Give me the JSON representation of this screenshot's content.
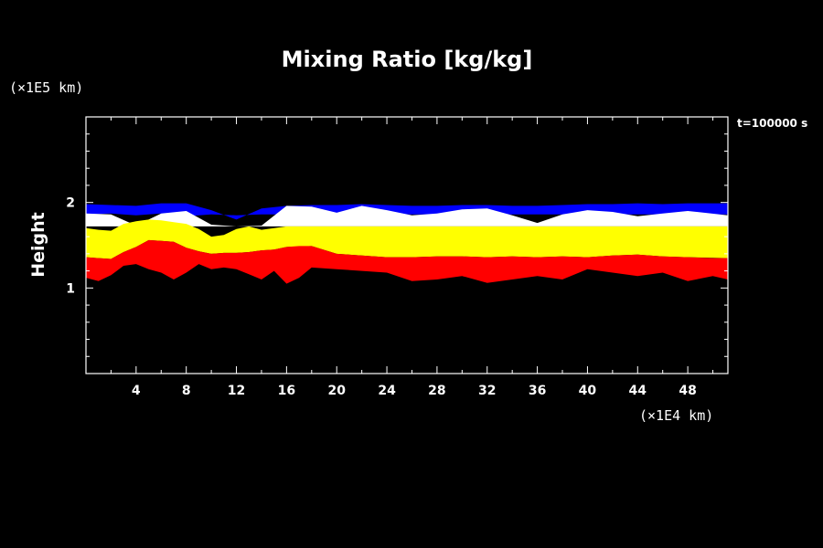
{
  "chart_data": {
    "type": "heatmap",
    "title": "Mixing Ratio [kg/kg]",
    "ylabel": "Height",
    "y_unit": "(×1E5 km)",
    "x_unit": "(×1E4 km)",
    "time_label": "t=100000 s",
    "xlim": [
      0,
      51.2
    ],
    "ylim": [
      0,
      3.0
    ],
    "x_ticks": [
      4,
      8,
      12,
      16,
      20,
      24,
      28,
      32,
      36,
      40,
      44,
      48
    ],
    "y_ticks": [
      1,
      2
    ],
    "background_color": "#000000",
    "colors": {
      "blue": "#0000ff",
      "white": "#ffffff",
      "yellow": "#ffff00",
      "red": "#ff0000",
      "cyan": "#00ffff"
    },
    "bands": [
      {
        "color": "blue",
        "x": [
          0,
          2,
          4,
          6,
          8,
          10,
          12,
          14,
          16,
          18,
          20,
          22,
          24,
          26,
          28,
          30,
          32,
          34,
          36,
          38,
          40,
          42,
          44,
          46,
          48,
          51.2
        ],
        "bottom": [
          1.86,
          1.87,
          1.85,
          1.87,
          1.84,
          1.86,
          1.85,
          1.86,
          1.86,
          1.86,
          1.86,
          1.86,
          1.86,
          1.86,
          1.86,
          1.86,
          1.86,
          1.86,
          1.86,
          1.86,
          1.86,
          1.86,
          1.86,
          1.86,
          1.86,
          1.86
        ],
        "top": [
          1.98,
          1.97,
          1.96,
          1.99,
          1.99,
          1.91,
          1.8,
          1.93,
          1.96,
          1.97,
          1.97,
          1.98,
          1.97,
          1.96,
          1.96,
          1.97,
          1.97,
          1.96,
          1.96,
          1.97,
          1.98,
          1.98,
          1.99,
          1.98,
          1.99,
          1.99
        ]
      },
      {
        "color": "white",
        "x": [
          0,
          2,
          4,
          6,
          8,
          10,
          12,
          14,
          16,
          18,
          20,
          22,
          24,
          26,
          28,
          30,
          32,
          34,
          36,
          38,
          40,
          42,
          44,
          46,
          48,
          51.2
        ],
        "bottom": [
          1.72,
          1.72,
          1.72,
          1.72,
          1.72,
          1.72,
          1.72,
          1.72,
          1.72,
          1.72,
          1.72,
          1.72,
          1.72,
          1.72,
          1.72,
          1.72,
          1.72,
          1.72,
          1.72,
          1.72,
          1.72,
          1.72,
          1.72,
          1.72,
          1.72,
          1.72
        ],
        "top": [
          1.87,
          1.86,
          1.73,
          1.87,
          1.9,
          1.74,
          1.72,
          1.73,
          1.96,
          1.95,
          1.88,
          1.96,
          1.91,
          1.85,
          1.87,
          1.92,
          1.93,
          1.85,
          1.76,
          1.86,
          1.91,
          1.89,
          1.84,
          1.87,
          1.9,
          1.85
        ]
      },
      {
        "color": "yellow",
        "x": [
          0,
          1,
          2,
          3,
          4,
          5,
          6,
          7,
          8,
          9,
          10,
          11,
          12,
          13,
          14,
          15,
          16,
          18,
          20,
          22,
          24,
          26,
          28,
          30,
          32,
          34,
          36,
          38,
          40,
          42,
          44,
          46,
          48,
          51.2
        ],
        "bottom": [
          1.36,
          1.35,
          1.34,
          1.42,
          1.48,
          1.56,
          1.55,
          1.54,
          1.47,
          1.43,
          1.4,
          1.41,
          1.41,
          1.42,
          1.44,
          1.45,
          1.48,
          1.49,
          1.4,
          1.38,
          1.36,
          1.36,
          1.37,
          1.37,
          1.36,
          1.37,
          1.36,
          1.37,
          1.36,
          1.38,
          1.39,
          1.37,
          1.36,
          1.35
        ],
        "top": [
          1.7,
          1.68,
          1.67,
          1.75,
          1.78,
          1.8,
          1.79,
          1.77,
          1.75,
          1.69,
          1.6,
          1.62,
          1.69,
          1.72,
          1.68,
          1.7,
          1.72,
          1.72,
          1.72,
          1.72,
          1.72,
          1.72,
          1.72,
          1.72,
          1.72,
          1.72,
          1.72,
          1.72,
          1.72,
          1.72,
          1.72,
          1.72,
          1.72,
          1.72
        ]
      },
      {
        "color": "red",
        "x": [
          0,
          1,
          2,
          3,
          4,
          5,
          6,
          7,
          8,
          9,
          10,
          11,
          12,
          13,
          14,
          15,
          16,
          17,
          18,
          20,
          22,
          24,
          26,
          28,
          30,
          32,
          34,
          36,
          38,
          40,
          42,
          44,
          46,
          48,
          50,
          51.2
        ],
        "bottom": [
          1.12,
          1.08,
          1.15,
          1.26,
          1.28,
          1.22,
          1.18,
          1.1,
          1.18,
          1.28,
          1.22,
          1.24,
          1.22,
          1.16,
          1.1,
          1.2,
          1.05,
          1.12,
          1.24,
          1.22,
          1.2,
          1.18,
          1.08,
          1.1,
          1.14,
          1.06,
          1.1,
          1.14,
          1.1,
          1.22,
          1.18,
          1.14,
          1.18,
          1.08,
          1.14,
          1.1
        ],
        "top": [
          1.36,
          1.35,
          1.34,
          1.42,
          1.48,
          1.56,
          1.55,
          1.54,
          1.47,
          1.43,
          1.4,
          1.41,
          1.41,
          1.42,
          1.44,
          1.45,
          1.48,
          1.49,
          1.49,
          1.4,
          1.38,
          1.36,
          1.36,
          1.37,
          1.37,
          1.36,
          1.37,
          1.36,
          1.37,
          1.36,
          1.38,
          1.39,
          1.37,
          1.36,
          1.35,
          1.35
        ]
      }
    ],
    "grid": false,
    "legend": "none"
  }
}
